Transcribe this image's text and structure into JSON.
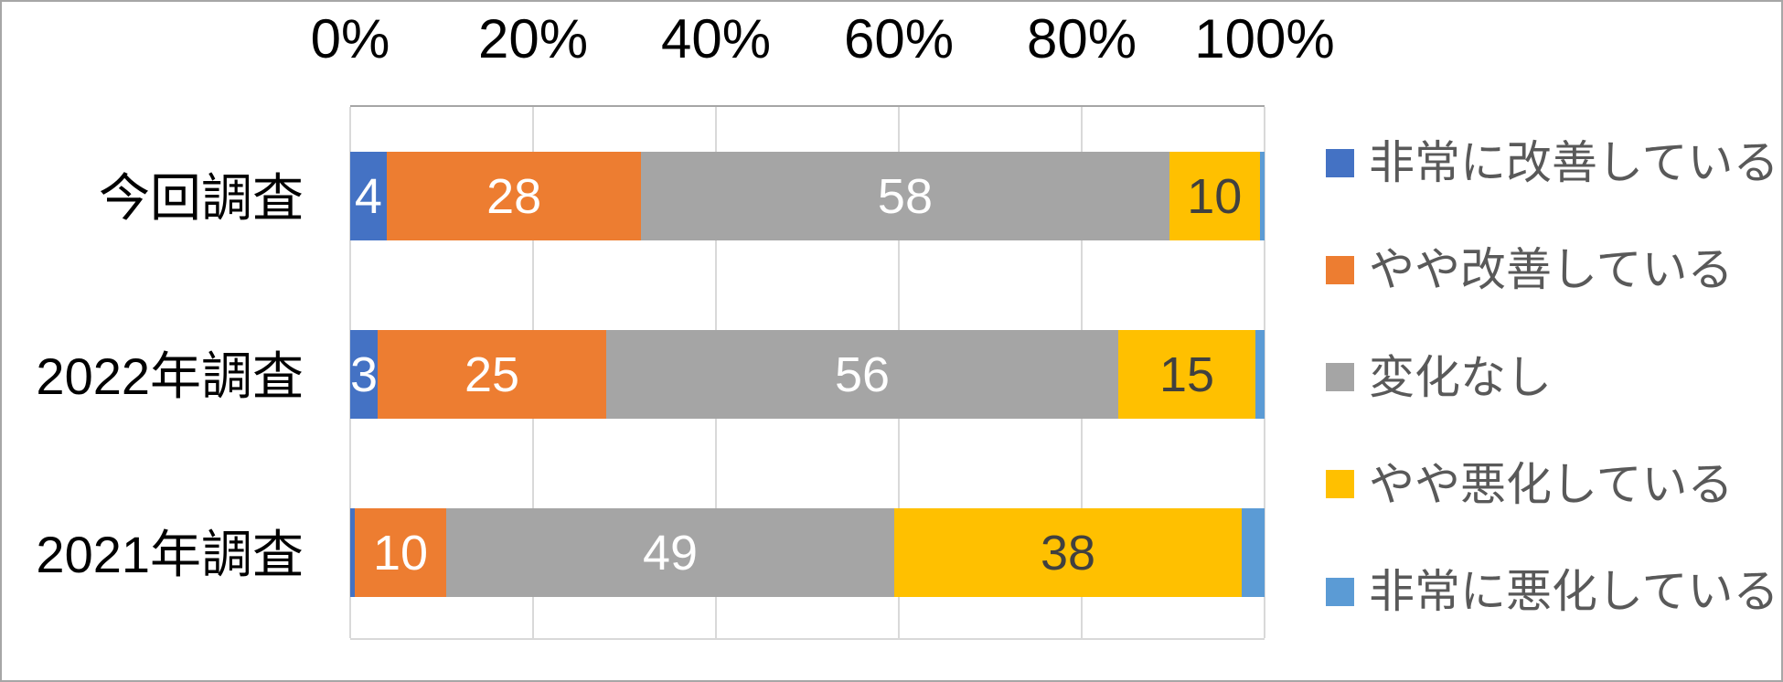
{
  "chart_data": {
    "type": "bar",
    "stacked": true,
    "orientation": "horizontal",
    "title": "",
    "categories": [
      "今回調査",
      "2022年調査",
      "2021年調査"
    ],
    "x_axis": {
      "tick_labels": [
        "0%",
        "20%",
        "40%",
        "60%",
        "80%",
        "100%"
      ],
      "range": [
        0,
        100
      ],
      "position": "top"
    },
    "grid": true,
    "legend_position": "right",
    "series": [
      {
        "name": "非常に改善している",
        "color": "#4472C4",
        "values": [
          4,
          3,
          0.5
        ],
        "data_labels": [
          "4",
          "3",
          ""
        ]
      },
      {
        "name": "やや改善している",
        "color": "#ED7D31",
        "values": [
          28,
          25,
          10
        ],
        "data_labels": [
          "28",
          "25",
          "10"
        ]
      },
      {
        "name": "変化なし",
        "color": "#A5A5A5",
        "values": [
          58,
          56,
          49
        ],
        "data_labels": [
          "58",
          "56",
          "49"
        ]
      },
      {
        "name": "やや悪化している",
        "color": "#FFC000",
        "values": [
          10,
          15,
          38
        ],
        "data_labels": [
          "10",
          "15",
          "38"
        ]
      },
      {
        "name": "非常に悪化している",
        "color": "#5B9BD5",
        "values": [
          0.5,
          1,
          2.5
        ],
        "data_labels": [
          "",
          "",
          ""
        ]
      }
    ],
    "styles": {
      "label_color_light": "#FFFFFF",
      "label_color_dark": "#404040",
      "axis_text_color": "#000000",
      "legend_text_color": "#595959",
      "gridline_color": "#D9D9D9",
      "axis_line_color": "#A6A6A6"
    }
  }
}
